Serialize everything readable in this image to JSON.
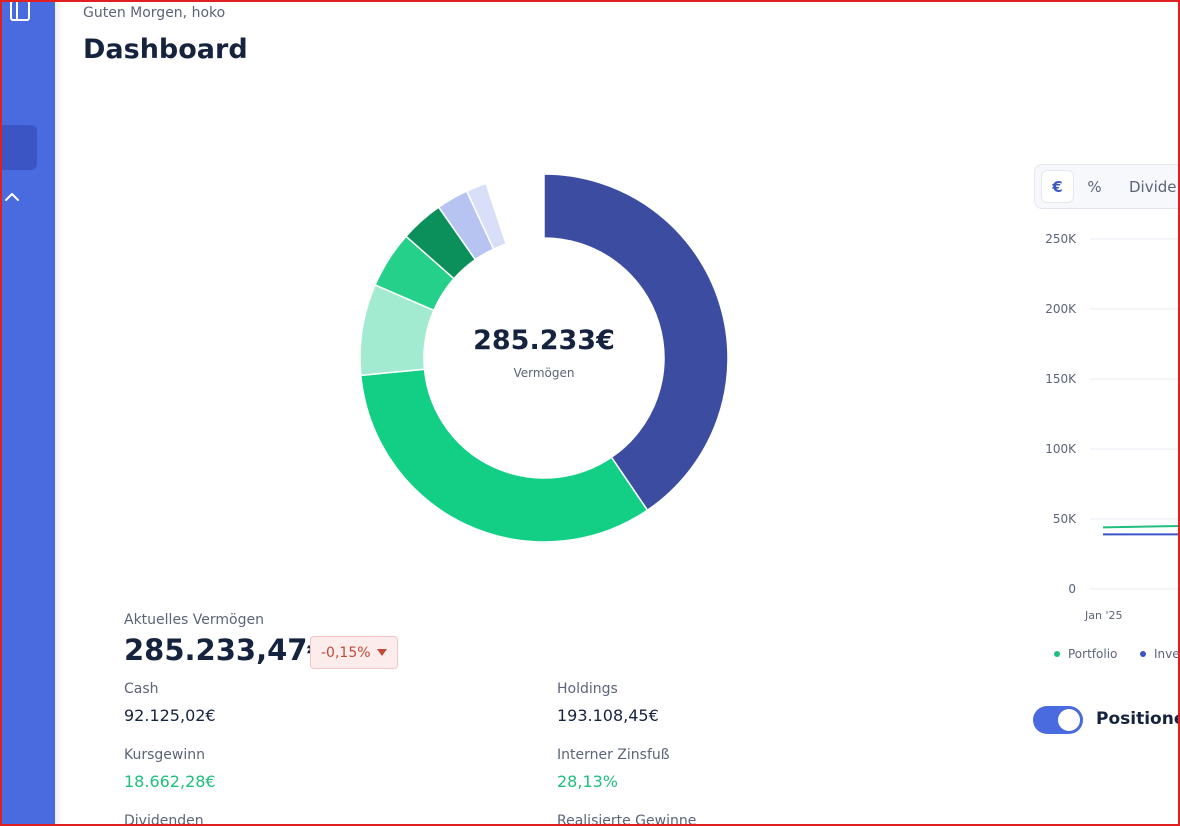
{
  "header": {
    "greeting": "Guten Morgen, hoko",
    "title": "Dashboard"
  },
  "sidebar": {
    "icons": [
      "book-icon",
      "chevron-up-icon"
    ]
  },
  "donut": {
    "value": "285.233€",
    "label": "Vermögen",
    "segments": [
      {
        "fraction": 0.405,
        "color": "#3b4ca1"
      },
      {
        "fraction": 0.33,
        "color": "#13cf86"
      },
      {
        "fraction": 0.08,
        "color": "#a3ebd0"
      },
      {
        "fraction": 0.05,
        "color": "#24d08a"
      },
      {
        "fraction": 0.038,
        "color": "#0b8f5b"
      },
      {
        "fraction": 0.028,
        "color": "#b7c3f1"
      },
      {
        "fraction": 0.018,
        "color": "#d9dff8"
      }
    ]
  },
  "summary": {
    "current_label": "Aktuelles Vermögen",
    "current_value": "285.233,47€",
    "change": "-0,15%",
    "cash_label": "Cash",
    "cash_value": "92.125,02€",
    "holdings_label": "Holdings",
    "holdings_value": "193.108,45€",
    "gain_label": "Kursgewinn",
    "gain_value": "18.662,28€",
    "irr_label": "Interner Zinsfuß",
    "irr_value": "28,13%",
    "dividends_label": "Dividenden",
    "realized_label": "Realisierte Gewinne"
  },
  "segment_control": {
    "items": [
      "€",
      "%",
      "Divide"
    ],
    "active": "€"
  },
  "chart_data": {
    "type": "line",
    "yticks": [
      "250K",
      "200K",
      "150K",
      "100K",
      "50K",
      "0"
    ],
    "xticks": [
      "Jan '25"
    ],
    "ylim": [
      0,
      250000
    ],
    "series": [
      {
        "name": "Portfolio",
        "color": "#1fbf7f",
        "values": [
          44000,
          45000
        ]
      },
      {
        "name": "Inve",
        "color": "#3b55c4",
        "values": [
          39000,
          39000
        ]
      }
    ]
  },
  "toggle": {
    "label": "Positionen",
    "on": true
  },
  "colors": {
    "sidebar": "#4a6ae0",
    "accent": "#3b55c4",
    "green": "#1fbf7f",
    "text": "#16233f"
  }
}
